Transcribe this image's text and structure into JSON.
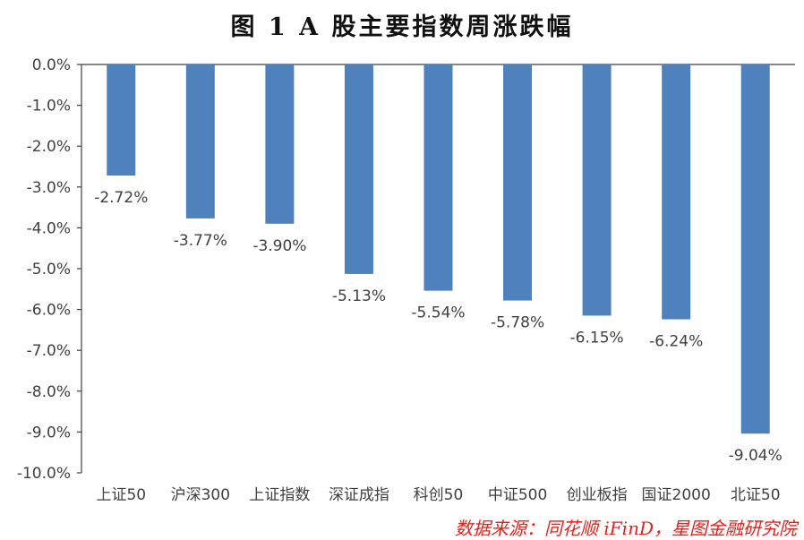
{
  "title": "图 1 A 股主要指数周涨跌幅",
  "source": "数据来源：同花顺 iFinD，星图金融研究院",
  "chart_data": {
    "type": "bar",
    "title": "图 1 A 股主要指数周涨跌幅",
    "xlabel": "",
    "ylabel": "",
    "categories": [
      "上证50",
      "沪深300",
      "上证指数",
      "深证成指",
      "科创50",
      "中证500",
      "创业板指",
      "国证2000",
      "北证50"
    ],
    "values": [
      -2.72,
      -3.77,
      -3.9,
      -5.13,
      -5.54,
      -5.78,
      -6.15,
      -6.24,
      -9.04
    ],
    "data_labels": [
      "-2.72%",
      "-3.77%",
      "-3.90%",
      "-5.13%",
      "-5.54%",
      "-5.78%",
      "-6.15%",
      "-6.24%",
      "-9.04%"
    ],
    "ylim": [
      -10,
      0
    ],
    "y_ticks": [
      0,
      -1,
      -2,
      -3,
      -4,
      -5,
      -6,
      -7,
      -8,
      -9,
      -10
    ],
    "y_tick_labels": [
      "0.0%",
      "-1.0%",
      "-2.0%",
      "-3.0%",
      "-4.0%",
      "-5.0%",
      "-6.0%",
      "-7.0%",
      "-8.0%",
      "-9.0%",
      "-10.0%"
    ],
    "grid": false,
    "legend": "none",
    "bar_color": "#4f81bd"
  }
}
